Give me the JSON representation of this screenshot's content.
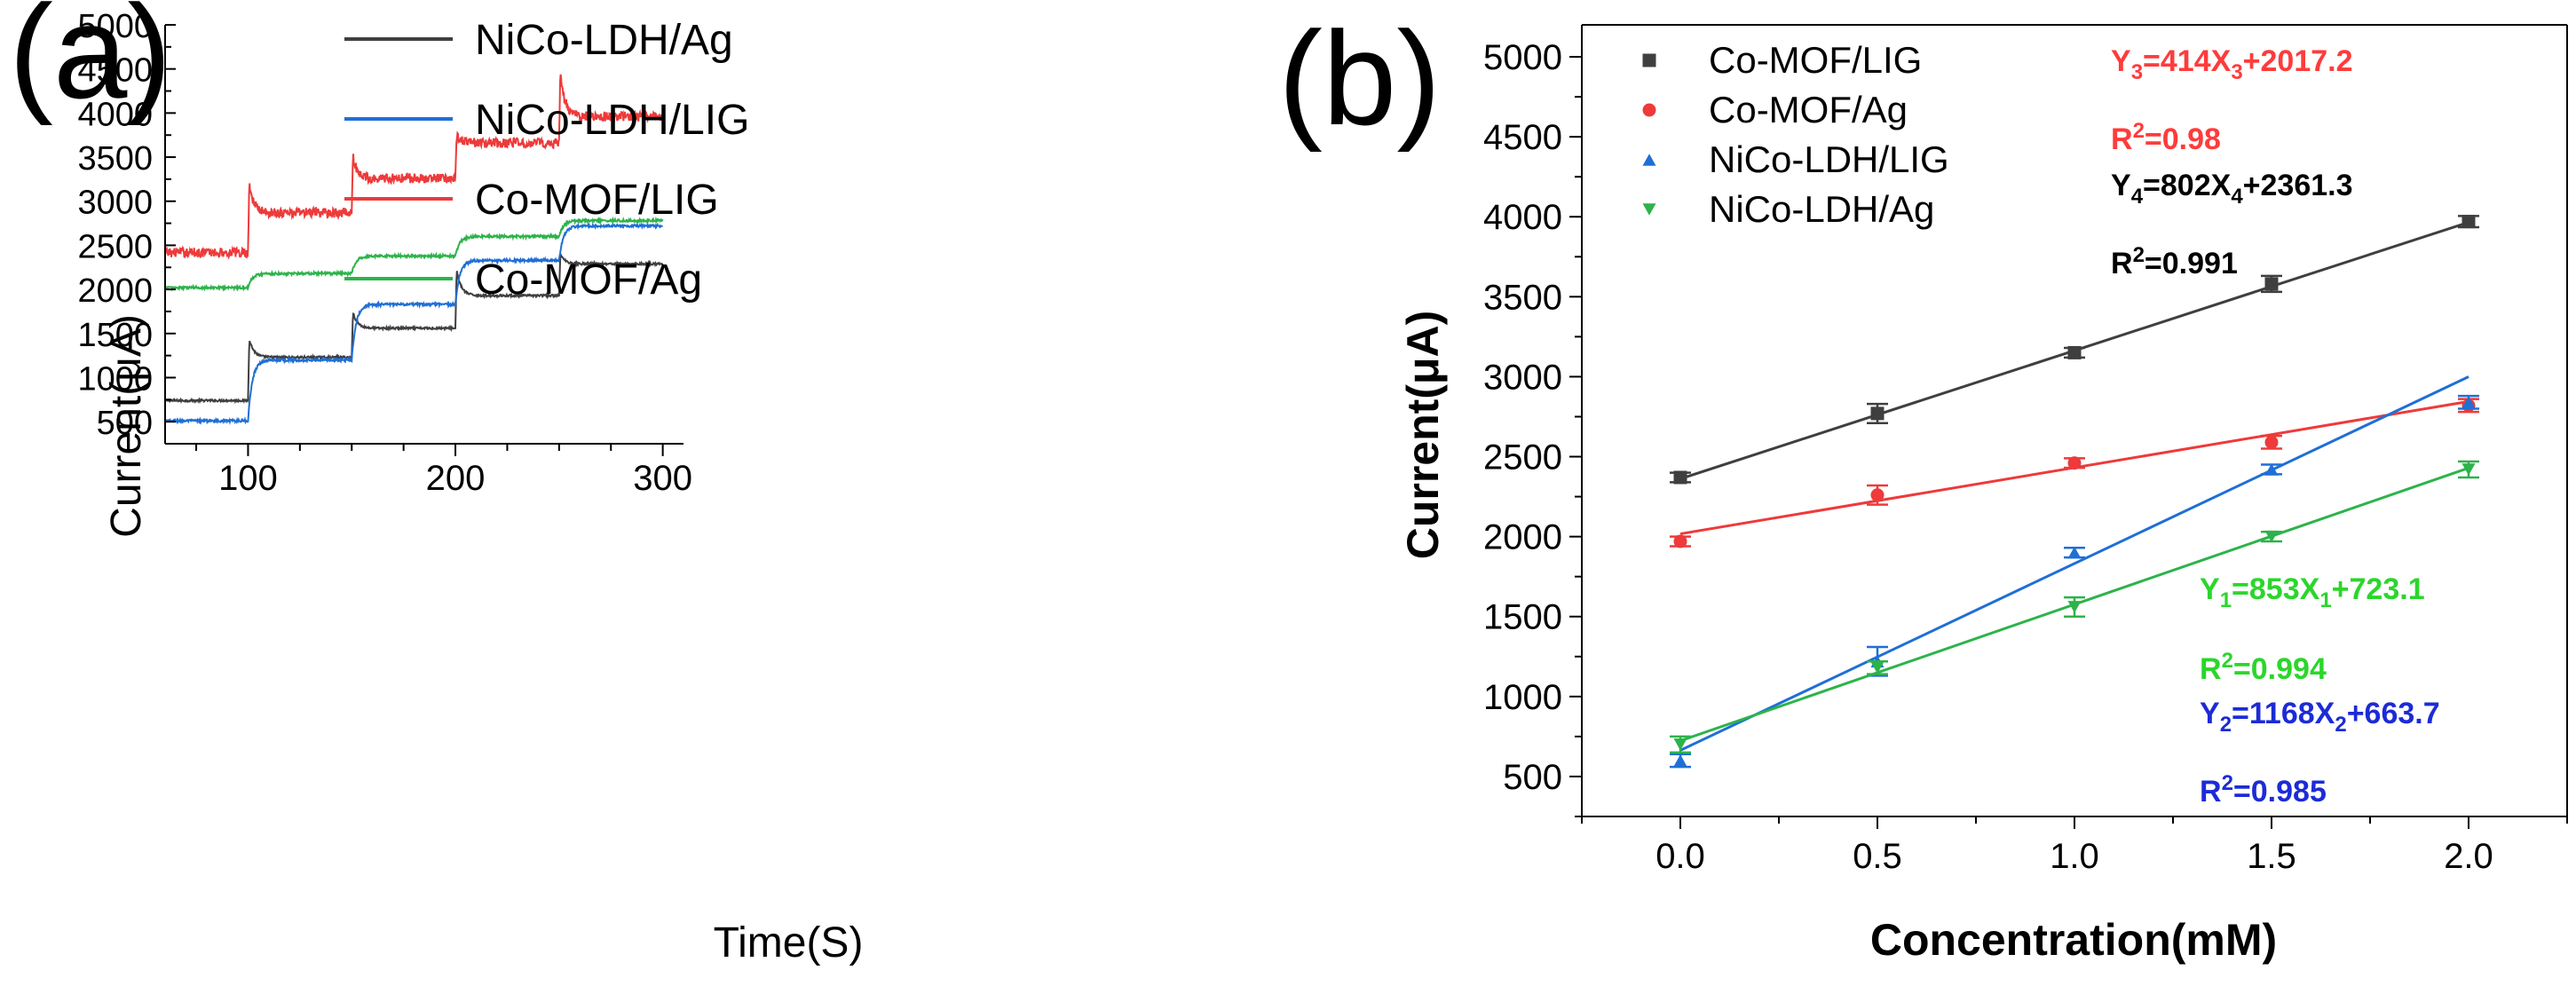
{
  "panel_labels": {
    "a": "(a)",
    "b": "(b)"
  },
  "colors": {
    "black": "#3f3f3f",
    "blue": "#1f6fd6",
    "red": "#ee3a3a",
    "green": "#2db34a",
    "eq_red": "#ff3b3b",
    "eq_black": "#000000",
    "eq_green": "#2bd62b",
    "eq_blue": "#1c2bd6"
  },
  "chart_data": [
    {
      "id": "a",
      "type": "line",
      "title": "",
      "xlabel": "Time(S)",
      "ylabel": "Current(μA)",
      "xlim": [
        60,
        310
      ],
      "ylim": [
        250,
        5000
      ],
      "xticks": [
        100,
        200,
        300
      ],
      "yticks": [
        500,
        1000,
        1500,
        2000,
        2500,
        3000,
        3500,
        4000,
        4500,
        5000
      ],
      "legend_position": "top-left",
      "step_times": [
        100,
        150,
        200,
        250
      ],
      "series": [
        {
          "name": "NiCo-LDH/Ag",
          "color": "black",
          "levels": [
            740,
            1230,
            1560,
            1930,
            2290
          ],
          "spike": [
            1440,
            1740,
            2220,
            2400
          ],
          "noise": 12
        },
        {
          "name": "NiCo-LDH/LIG",
          "color": "blue",
          "levels": [
            510,
            1200,
            1830,
            2330,
            2720
          ],
          "spike": [
            0,
            0,
            0,
            0
          ],
          "noise": 14
        },
        {
          "name": "Co-MOF/LIG",
          "color": "red",
          "levels": [
            2420,
            2870,
            3260,
            3660,
            3960
          ],
          "spike": [
            3200,
            3500,
            3760,
            4450
          ],
          "noise": 55
        },
        {
          "name": "Co-MOF/Ag",
          "color": "green",
          "levels": [
            2020,
            2180,
            2380,
            2600,
            2780
          ],
          "spike": [
            0,
            0,
            0,
            0
          ],
          "noise": 14
        }
      ]
    },
    {
      "id": "b",
      "type": "scatter",
      "title": "",
      "xlabel": "Concentration(mM)",
      "ylabel": "Current(μA)",
      "xlim": [
        -0.25,
        2.25
      ],
      "ylim": [
        250,
        5200
      ],
      "xticks": [
        0.0,
        0.5,
        1.0,
        1.5,
        2.0
      ],
      "xtick_labels": [
        "0.0",
        "0.5",
        "1.0",
        "1.5",
        "2.0"
      ],
      "yticks": [
        500,
        1000,
        1500,
        2000,
        2500,
        3000,
        3500,
        4000,
        4500,
        5000
      ],
      "legend_position": "top-left",
      "x": [
        0.0,
        0.5,
        1.0,
        1.5,
        2.0
      ],
      "series": [
        {
          "name": "Co-MOF/LIG",
          "color": "black",
          "marker": "square",
          "values": [
            2370,
            2770,
            3150,
            3580,
            3970
          ],
          "errors": [
            30,
            60,
            30,
            50,
            35
          ],
          "fit": {
            "slope": 802,
            "intercept": 2361.3
          }
        },
        {
          "name": "Co-MOF/Ag",
          "color": "red",
          "marker": "circle",
          "values": [
            1970,
            2260,
            2460,
            2590,
            2820
          ],
          "errors": [
            30,
            60,
            30,
            40,
            40
          ],
          "fit": {
            "slope": 414,
            "intercept": 2017.2
          }
        },
        {
          "name": "NiCo-LDH/LIG",
          "color": "blue",
          "marker": "triangle-up",
          "values": [
            600,
            1220,
            1900,
            2420,
            2840
          ],
          "errors": [
            40,
            90,
            30,
            30,
            40
          ],
          "fit": {
            "slope": 1168,
            "intercept": 663.7
          }
        },
        {
          "name": "NiCo-LDH/Ag",
          "color": "green",
          "marker": "triangle-down",
          "values": [
            700,
            1180,
            1560,
            2000,
            2420
          ],
          "errors": [
            50,
            40,
            60,
            30,
            50
          ],
          "fit": {
            "slope": 853,
            "intercept": 723.1
          }
        }
      ],
      "annotations": [
        {
          "id": "eq3",
          "color": "eq_red",
          "base": "Y",
          "sub1": "3",
          "mid": "=414X",
          "sub2": "3",
          "tail": "+2017.2"
        },
        {
          "id": "r3",
          "color": "eq_red",
          "base": "R",
          "sup": "2",
          "tail": "=0.98"
        },
        {
          "id": "eq4",
          "color": "eq_black",
          "base": "Y",
          "sub1": "4",
          "mid": "=802X",
          "sub2": "4",
          "tail": "+2361.3"
        },
        {
          "id": "r4",
          "color": "eq_black",
          "base": "R",
          "sup": "2",
          "tail": "=0.991"
        },
        {
          "id": "eq1",
          "color": "eq_green",
          "base": "Y",
          "sub1": "1",
          "mid": "=853X",
          "sub2": "1",
          "tail": "+723.1"
        },
        {
          "id": "r1",
          "color": "eq_green",
          "base": "R",
          "sup": "2",
          "tail": "=0.994"
        },
        {
          "id": "eq2",
          "color": "eq_blue",
          "base": "Y",
          "sub1": "2",
          "mid": "=1168X",
          "sub2": "2",
          "tail": "+663.7"
        },
        {
          "id": "r2",
          "color": "eq_blue",
          "base": "R",
          "sup": "2",
          "tail": "=0.985"
        }
      ]
    }
  ]
}
